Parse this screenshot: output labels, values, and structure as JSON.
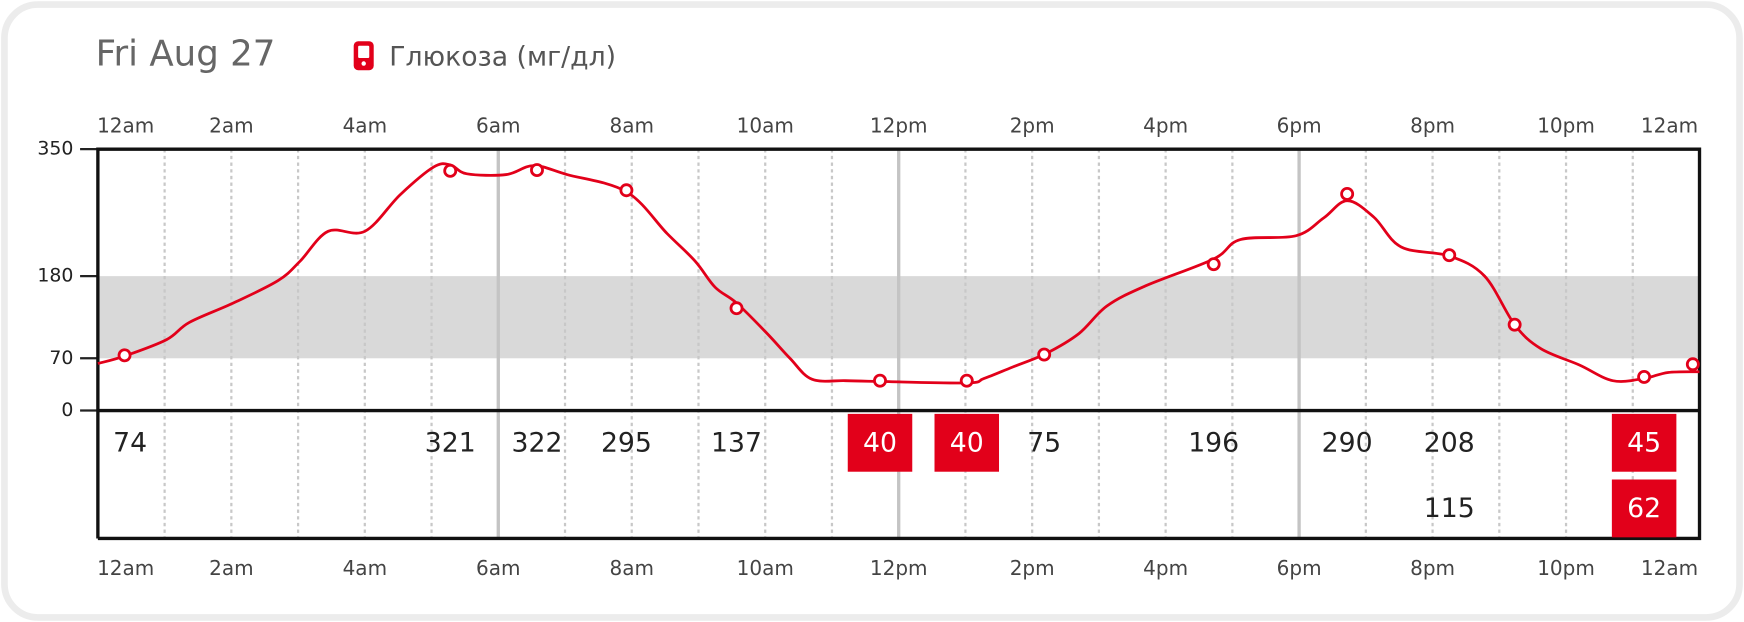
{
  "chart_data": {
    "type": "line",
    "title": "Fri Aug 27",
    "legend": "Глюкоза (мг/дл)",
    "color": "#e2001a",
    "xlim": [
      0,
      24
    ],
    "xticks": [
      {
        "value": 0,
        "label": "12am"
      },
      {
        "value": 2,
        "label": "2am"
      },
      {
        "value": 4,
        "label": "4am"
      },
      {
        "value": 6,
        "label": "6am"
      },
      {
        "value": 8,
        "label": "8am"
      },
      {
        "value": 10,
        "label": "10am"
      },
      {
        "value": 12,
        "label": "12pm"
      },
      {
        "value": 14,
        "label": "2pm"
      },
      {
        "value": 16,
        "label": "4pm"
      },
      {
        "value": 18,
        "label": "6pm"
      },
      {
        "value": 20,
        "label": "8pm"
      },
      {
        "value": 22,
        "label": "10pm"
      },
      {
        "value": 24,
        "label": "12am"
      }
    ],
    "ylim": [
      0,
      350
    ],
    "yticks": [
      0,
      70,
      180,
      350
    ],
    "target_range": [
      70,
      180
    ],
    "x": [
      0,
      0.4,
      1.03,
      1.37,
      2.03,
      2.7,
      3.03,
      3.45,
      4.0,
      4.53,
      5.03,
      5.28,
      5.53,
      6.12,
      6.53,
      7.03,
      7.92,
      8.53,
      8.95,
      9.25,
      9.57,
      10.03,
      10.37,
      10.7,
      11.2,
      11.72,
      13.02,
      13.28,
      13.7,
      14.2,
      14.7,
      15.12,
      15.7,
      16.72,
      17.12,
      17.95,
      18.37,
      18.72,
      19.12,
      19.53,
      20.25,
      20.78,
      21.23,
      21.62,
      22.2,
      22.7,
      23.17,
      23.53,
      24
    ],
    "values": [
      63,
      73,
      95,
      118,
      144,
      174,
      200,
      240,
      240,
      289,
      326,
      329,
      317,
      316,
      328,
      316,
      293,
      237,
      200,
      165,
      144,
      103,
      70,
      42,
      40,
      39,
      37,
      43,
      58,
      76,
      103,
      140,
      167,
      203,
      229,
      234,
      258,
      281,
      259,
      219,
      207,
      180,
      115,
      83,
      61,
      40,
      43,
      51,
      52
    ],
    "readings": {
      "x": [
        0.4,
        5.28,
        6.58,
        7.92,
        9.57,
        11.72,
        13.02,
        14.18,
        16.72,
        18.72,
        20.25,
        21.23,
        23.17,
        23.9
      ],
      "values": [
        74,
        321,
        322,
        295,
        137,
        40,
        40,
        75,
        196,
        290,
        208,
        115,
        45,
        62
      ]
    }
  }
}
